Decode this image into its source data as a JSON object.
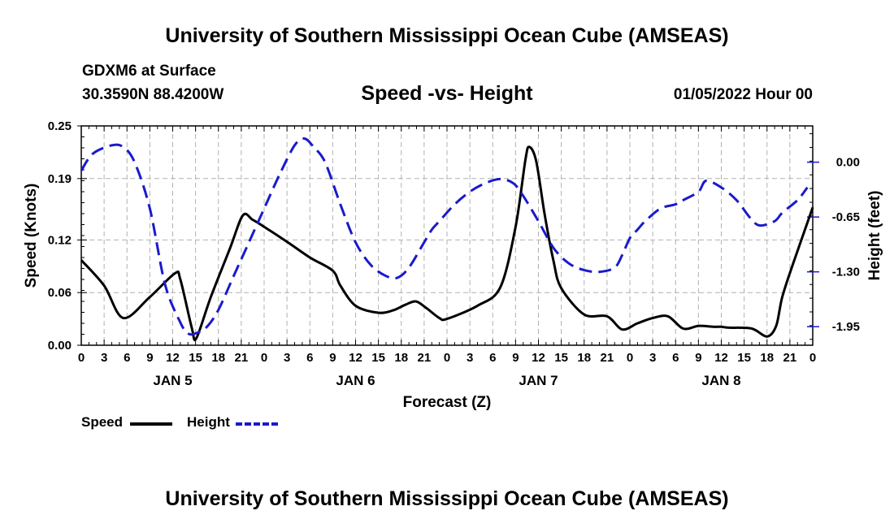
{
  "header": {
    "title": "University of Southern Mississippi Ocean Cube (AMSEAS)",
    "station": "GDXM6 at Surface",
    "coords": "30.3590N  88.4200W",
    "chart_title": "Speed -vs- Height",
    "datetime": "01/05/2022 Hour 00"
  },
  "footer": {
    "title": "University of Southern Mississippi Ocean Cube (AMSEAS)"
  },
  "legend": {
    "speed_label": "Speed",
    "height_label": "Height"
  },
  "colors": {
    "speed": "#000000",
    "height": "#1a1acc",
    "grid": "#b0b0b0"
  },
  "chart_data": {
    "type": "line",
    "title": "Speed -vs- Height",
    "xlabel": "Forecast (Z)",
    "ylabel_left": "Speed (Knots)",
    "ylabel_right": "Height (feet)",
    "x_range_hours": [
      0,
      96
    ],
    "ylim_left": [
      0,
      0.25
    ],
    "ylim_right": [
      -2.17,
      0.43
    ],
    "y_ticks_left": [
      0.0,
      0.06,
      0.12,
      0.19,
      0.25
    ],
    "y_tick_labels_left": [
      "0.00",
      "0.06",
      "0.12",
      "0.19",
      "0.25"
    ],
    "y_ticks_right": [
      0.0,
      -0.65,
      -1.3,
      -1.95
    ],
    "y_tick_labels_right": [
      "0.00",
      "-0.65",
      "-1.30",
      "-1.95"
    ],
    "x_tick_hours": [
      0,
      3,
      6,
      9,
      12,
      15,
      18,
      21,
      24,
      27,
      30,
      33,
      36,
      39,
      42,
      45,
      48,
      51,
      54,
      57,
      60,
      63,
      66,
      69,
      72,
      75,
      78,
      81,
      84,
      87,
      90,
      93,
      96
    ],
    "x_tick_labels": [
      "0",
      "3",
      "6",
      "9",
      "12",
      "15",
      "18",
      "21",
      "0",
      "3",
      "6",
      "9",
      "12",
      "15",
      "18",
      "21",
      "0",
      "3",
      "6",
      "9",
      "12",
      "15",
      "18",
      "21",
      "0",
      "3",
      "6",
      "9",
      "12",
      "15",
      "18",
      "21",
      "0"
    ],
    "day_labels": [
      {
        "label": "JAN 5",
        "hour": 12
      },
      {
        "label": "JAN 6",
        "hour": 36
      },
      {
        "label": "JAN 7",
        "hour": 60
      },
      {
        "label": "JAN 8",
        "hour": 84
      }
    ],
    "grid": true,
    "series": [
      {
        "name": "Speed",
        "axis": "left",
        "style": "solid",
        "x": [
          0,
          3,
          5.5,
          9,
          12.3,
          13,
          14.5,
          15.1,
          17,
          19.5,
          21.2,
          22.5,
          24,
          27,
          30,
          33,
          34,
          36,
          39,
          41,
          42.5,
          43.9,
          45.2,
          47,
          48,
          52,
          55,
          57,
          58.3,
          58.8,
          59.7,
          60.8,
          62,
          63,
          66,
          69,
          71,
          73,
          75,
          77,
          79,
          81,
          83,
          84,
          85,
          88,
          90,
          91.2,
          92,
          93.5,
          96
        ],
        "values": [
          0.097,
          0.068,
          0.031,
          0.055,
          0.082,
          0.075,
          0.02,
          0.008,
          0.055,
          0.11,
          0.148,
          0.143,
          0.135,
          0.118,
          0.1,
          0.085,
          0.068,
          0.045,
          0.037,
          0.04,
          0.046,
          0.05,
          0.043,
          0.031,
          0.03,
          0.045,
          0.066,
          0.135,
          0.212,
          0.226,
          0.21,
          0.15,
          0.095,
          0.065,
          0.035,
          0.033,
          0.018,
          0.025,
          0.031,
          0.033,
          0.019,
          0.022,
          0.021,
          0.021,
          0.02,
          0.019,
          0.01,
          0.022,
          0.055,
          0.095,
          0.157
        ]
      },
      {
        "name": "Height",
        "axis": "right",
        "style": "dashed",
        "x": [
          0,
          1.5,
          4,
          5.5,
          7,
          9,
          11,
          13,
          14,
          15,
          16.5,
          18,
          20,
          22,
          24,
          26,
          28,
          29.3,
          30.5,
          32,
          34,
          36,
          38,
          40,
          41.5,
          43,
          45,
          46,
          47,
          49,
          51,
          53,
          55,
          56.7,
          58,
          60,
          62,
          64,
          66,
          68,
          70,
          71,
          72,
          73,
          74,
          76,
          78,
          79,
          81,
          82,
          84,
          86,
          87.7,
          89,
          91,
          92,
          94,
          95.3
        ],
        "values": [
          -0.1,
          0.1,
          0.2,
          0.18,
          0.0,
          -0.55,
          -1.45,
          -1.9,
          -2.03,
          -2.03,
          -1.95,
          -1.75,
          -1.35,
          -0.95,
          -0.55,
          -0.15,
          0.2,
          0.28,
          0.18,
          0.0,
          -0.5,
          -0.95,
          -1.22,
          -1.35,
          -1.37,
          -1.25,
          -0.95,
          -0.8,
          -0.7,
          -0.5,
          -0.35,
          -0.25,
          -0.2,
          -0.25,
          -0.4,
          -0.7,
          -1.02,
          -1.2,
          -1.28,
          -1.3,
          -1.25,
          -1.1,
          -0.9,
          -0.8,
          -0.7,
          -0.55,
          -0.5,
          -0.45,
          -0.35,
          -0.22,
          -0.3,
          -0.45,
          -0.65,
          -0.75,
          -0.7,
          -0.6,
          -0.45,
          -0.3
        ]
      }
    ]
  }
}
